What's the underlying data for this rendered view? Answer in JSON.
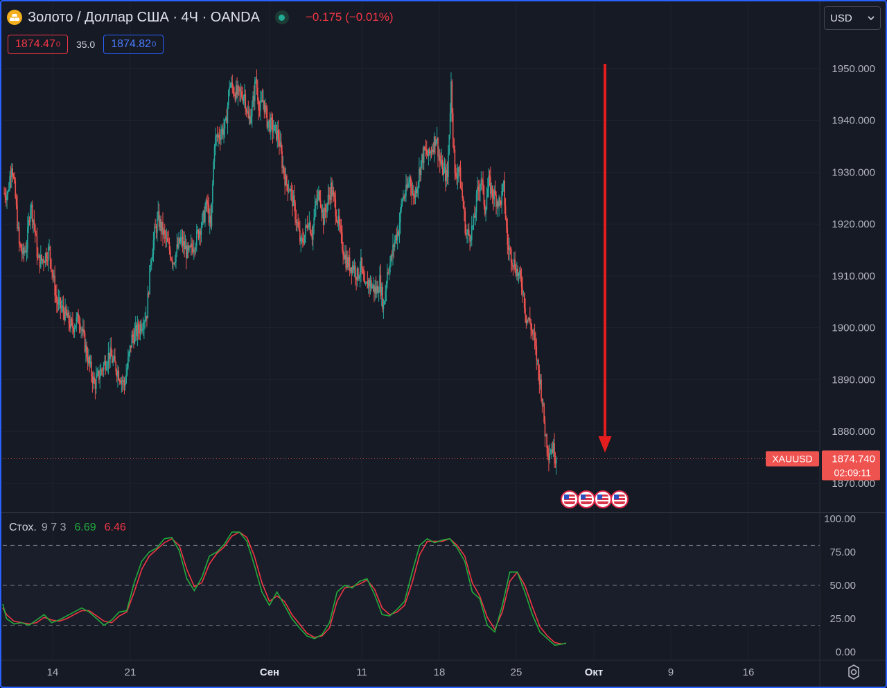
{
  "header": {
    "title": "Золото / Доллар США · 4Ч · OANDA",
    "change": "−0.175 (−0.01%)",
    "bid": "1874.47",
    "bid_sup": "0",
    "spread": "35.0",
    "ask": "1874.82",
    "ask_sup": "0",
    "currency": "USD"
  },
  "colors": {
    "up": "#26a69a",
    "down": "#ef5350",
    "arrow": "#e41e1e",
    "stoch_k": "#22ab3c",
    "stoch_d": "#f23645",
    "accent": "#2962ff"
  },
  "icons": {
    "symbol": "gold-bars-icon",
    "status": "market-open-dot-icon",
    "currency_dropdown": "chevron-down-icon",
    "settings": "gear-icon",
    "events": "us-flag-icon"
  },
  "chart_data": [
    {
      "type": "candlestick",
      "symbol_label": "XAUUSD",
      "last_price": 1874.74,
      "last_price_label": "1874.740",
      "countdown": "02:09:11",
      "ylim": [
        1862.3,
        1958.0
      ],
      "y_ticks": [
        "1870.000",
        "1880.000",
        "1890.000",
        "1900.000",
        "1910.000",
        "1920.000",
        "1930.000",
        "1940.000",
        "1950.000"
      ],
      "x_ticks": [
        "14",
        "21",
        "Сен",
        "11",
        "18",
        "25",
        "Окт",
        "9",
        "16"
      ],
      "grid": true,
      "path_points": [
        [
          1,
          1926
        ],
        [
          2,
          1932
        ],
        [
          3,
          1925
        ],
        [
          4,
          1916
        ],
        [
          5,
          1914
        ],
        [
          6,
          1916
        ],
        [
          7,
          1924
        ],
        [
          8,
          1920
        ],
        [
          9,
          1913
        ],
        [
          10,
          1913
        ],
        [
          12,
          1915
        ],
        [
          14,
          1905
        ],
        [
          16,
          1903
        ],
        [
          18,
          1900
        ],
        [
          20,
          1902
        ],
        [
          22,
          1895
        ],
        [
          24,
          1889
        ],
        [
          26,
          1892
        ],
        [
          28,
          1895
        ],
        [
          30,
          1892
        ],
        [
          32,
          1889
        ],
        [
          34,
          1898
        ],
        [
          36,
          1900
        ],
        [
          38,
          1903
        ],
        [
          39,
          1913
        ],
        [
          40,
          1918
        ],
        [
          41,
          1921
        ],
        [
          43,
          1917
        ],
        [
          45,
          1913
        ],
        [
          47,
          1917
        ],
        [
          49,
          1914
        ],
        [
          51,
          1917
        ],
        [
          53,
          1921
        ],
        [
          54,
          1924
        ],
        [
          55,
          1919
        ],
        [
          56,
          1936
        ],
        [
          58,
          1938
        ],
        [
          59,
          1939
        ],
        [
          60,
          1947
        ],
        [
          62,
          1945
        ],
        [
          64,
          1945
        ],
        [
          65,
          1940
        ],
        [
          66,
          1942
        ],
        [
          67,
          1948
        ],
        [
          68,
          1942
        ],
        [
          69,
          1944
        ],
        [
          70,
          1940
        ],
        [
          71,
          1939
        ],
        [
          72,
          1938
        ],
        [
          73,
          1937
        ],
        [
          74,
          1932
        ],
        [
          75,
          1928
        ],
        [
          76,
          1927
        ],
        [
          77,
          1924
        ],
        [
          78,
          1920
        ],
        [
          79,
          1916
        ],
        [
          80,
          1918
        ],
        [
          81,
          1921
        ],
        [
          82,
          1918
        ],
        [
          83,
          1924
        ],
        [
          84,
          1926
        ],
        [
          85,
          1921
        ],
        [
          86,
          1924
        ],
        [
          87,
          1927
        ],
        [
          88,
          1924
        ],
        [
          89,
          1920
        ],
        [
          90,
          1916
        ],
        [
          91,
          1913
        ],
        [
          92,
          1912
        ],
        [
          93,
          1912
        ],
        [
          94,
          1910
        ],
        [
          95,
          1912
        ],
        [
          96,
          1907
        ],
        [
          97,
          1909
        ],
        [
          98,
          1908
        ],
        [
          99,
          1907
        ],
        [
          100,
          1909
        ],
        [
          101,
          1904
        ],
        [
          102,
          1911
        ],
        [
          103,
          1913
        ],
        [
          104,
          1917
        ],
        [
          105,
          1919
        ],
        [
          106,
          1925
        ],
        [
          107,
          1926
        ],
        [
          108,
          1929
        ],
        [
          109,
          1925
        ],
        [
          110,
          1928
        ],
        [
          111,
          1932
        ],
        [
          112,
          1934
        ],
        [
          113,
          1933
        ],
        [
          114,
          1935
        ],
        [
          115,
          1937
        ],
        [
          116,
          1932
        ],
        [
          117,
          1930
        ],
        [
          118,
          1929
        ],
        [
          119,
          1947
        ],
        [
          120,
          1929
        ],
        [
          121,
          1931
        ],
        [
          122,
          1925
        ],
        [
          123,
          1918
        ],
        [
          124,
          1918
        ],
        [
          125,
          1920
        ],
        [
          126,
          1926
        ],
        [
          127,
          1929
        ],
        [
          128,
          1923
        ],
        [
          129,
          1928
        ],
        [
          130,
          1926
        ],
        [
          131,
          1925
        ],
        [
          132,
          1924
        ],
        [
          133,
          1927
        ],
        [
          134,
          1916
        ],
        [
          135,
          1914
        ],
        [
          136,
          1912
        ],
        [
          137,
          1910
        ],
        [
          138,
          1908
        ],
        [
          139,
          1902
        ],
        [
          140,
          1901
        ],
        [
          141,
          1898
        ],
        [
          142,
          1893
        ],
        [
          143,
          1888
        ],
        [
          144,
          1880
        ],
        [
          145,
          1876
        ],
        [
          146,
          1877
        ],
        [
          147,
          1874.74
        ]
      ]
    },
    {
      "type": "line",
      "title": "Стох.",
      "params": "9 7 3",
      "ylim": [
        0,
        100
      ],
      "y_ticks": [
        "0.00",
        "25.00",
        "50.00",
        "75.00",
        "100.00"
      ],
      "levels": [
        20,
        50,
        80
      ],
      "series": [
        {
          "name": "6.69",
          "values": [
            [
              0,
              36
            ],
            [
              1,
              25
            ],
            [
              3,
              21
            ],
            [
              5,
              22
            ],
            [
              7,
              20
            ],
            [
              9,
              24
            ],
            [
              11,
              28
            ],
            [
              13,
              22
            ],
            [
              15,
              24
            ],
            [
              17,
              27
            ],
            [
              19,
              30
            ],
            [
              21,
              33
            ],
            [
              23,
              30
            ],
            [
              25,
              25
            ],
            [
              27,
              20
            ],
            [
              29,
              24
            ],
            [
              31,
              30
            ],
            [
              33,
              31
            ],
            [
              35,
              52
            ],
            [
              37,
              68
            ],
            [
              39,
              75
            ],
            [
              41,
              78
            ],
            [
              43,
              85
            ],
            [
              45,
              86
            ],
            [
              47,
              76
            ],
            [
              49,
              55
            ],
            [
              51,
              46
            ],
            [
              53,
              56
            ],
            [
              55,
              72
            ],
            [
              57,
              75
            ],
            [
              59,
              81
            ],
            [
              61,
              90
            ],
            [
              63,
              90
            ],
            [
              65,
              83
            ],
            [
              67,
              65
            ],
            [
              69,
              45
            ],
            [
              71,
              35
            ],
            [
              73,
              45
            ],
            [
              75,
              35
            ],
            [
              77,
              25
            ],
            [
              79,
              18
            ],
            [
              81,
              12
            ],
            [
              83,
              10
            ],
            [
              85,
              13
            ],
            [
              87,
              22
            ],
            [
              89,
              45
            ],
            [
              91,
              50
            ],
            [
              93,
              48
            ],
            [
              95,
              53
            ],
            [
              97,
              55
            ],
            [
              99,
              43
            ],
            [
              101,
              28
            ],
            [
              103,
              27
            ],
            [
              105,
              32
            ],
            [
              107,
              38
            ],
            [
              109,
              60
            ],
            [
              111,
              80
            ],
            [
              113,
              85
            ],
            [
              115,
              82
            ],
            [
              117,
              84
            ],
            [
              119,
              85
            ],
            [
              121,
              78
            ],
            [
              123,
              68
            ],
            [
              125,
              45
            ],
            [
              127,
              40
            ],
            [
              129,
              20
            ],
            [
              131,
              15
            ],
            [
              133,
              35
            ],
            [
              135,
              60
            ],
            [
              137,
              60
            ],
            [
              139,
              45
            ],
            [
              141,
              28
            ],
            [
              143,
              15
            ],
            [
              145,
              10
            ],
            [
              147,
              5
            ],
            [
              149,
              6
            ],
            [
              150,
              6.69
            ]
          ]
        },
        {
          "name": "6.46",
          "values": [
            [
              0,
              33
            ],
            [
              1,
              28
            ],
            [
              3,
              23
            ],
            [
              5,
              22
            ],
            [
              7,
              21
            ],
            [
              9,
              22
            ],
            [
              11,
              26
            ],
            [
              13,
              24
            ],
            [
              15,
              23
            ],
            [
              17,
              25
            ],
            [
              19,
              28
            ],
            [
              21,
              31
            ],
            [
              23,
              31
            ],
            [
              25,
              27
            ],
            [
              27,
              23
            ],
            [
              29,
              22
            ],
            [
              31,
              27
            ],
            [
              33,
              30
            ],
            [
              35,
              45
            ],
            [
              37,
              62
            ],
            [
              39,
              72
            ],
            [
              41,
              77
            ],
            [
              43,
              82
            ],
            [
              45,
              85
            ],
            [
              47,
              80
            ],
            [
              49,
              62
            ],
            [
              51,
              49
            ],
            [
              53,
              52
            ],
            [
              55,
              66
            ],
            [
              57,
              74
            ],
            [
              59,
              79
            ],
            [
              61,
              87
            ],
            [
              63,
              90
            ],
            [
              65,
              86
            ],
            [
              67,
              72
            ],
            [
              69,
              52
            ],
            [
              71,
              38
            ],
            [
              73,
              42
            ],
            [
              75,
              38
            ],
            [
              77,
              28
            ],
            [
              79,
              21
            ],
            [
              81,
              14
            ],
            [
              83,
              11
            ],
            [
              85,
              12
            ],
            [
              87,
              18
            ],
            [
              89,
              38
            ],
            [
              91,
              48
            ],
            [
              93,
              49
            ],
            [
              95,
              51
            ],
            [
              97,
              54
            ],
            [
              99,
              47
            ],
            [
              101,
              33
            ],
            [
              103,
              28
            ],
            [
              105,
              30
            ],
            [
              107,
              35
            ],
            [
              109,
              52
            ],
            [
              111,
              73
            ],
            [
              113,
              83
            ],
            [
              115,
              83
            ],
            [
              117,
              83
            ],
            [
              119,
              85
            ],
            [
              121,
              80
            ],
            [
              123,
              72
            ],
            [
              125,
              52
            ],
            [
              127,
              42
            ],
            [
              129,
              26
            ],
            [
              131,
              17
            ],
            [
              133,
              30
            ],
            [
              135,
              53
            ],
            [
              137,
              60
            ],
            [
              139,
              50
            ],
            [
              141,
              34
            ],
            [
              143,
              19
            ],
            [
              145,
              12
            ],
            [
              147,
              7
            ],
            [
              149,
              6
            ],
            [
              150,
              6.46
            ]
          ]
        }
      ]
    }
  ]
}
